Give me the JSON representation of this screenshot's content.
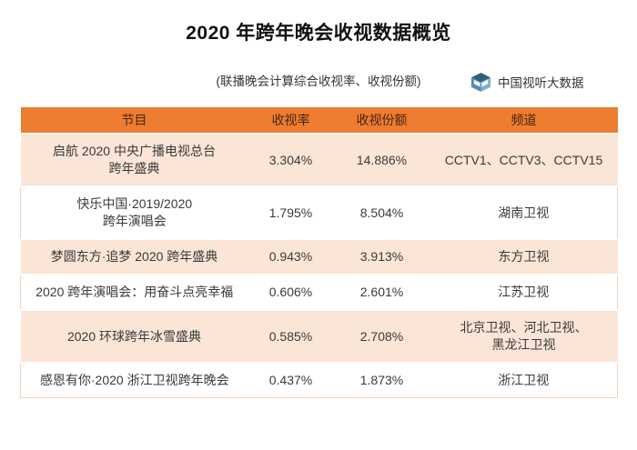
{
  "page": {
    "title": "2020 年跨年晚会收视数据概览",
    "subtitle": "(联播晚会计算综合收视率、收视份额)",
    "logo": {
      "icon": "cube-logo-icon",
      "text": "中国视听大数据"
    }
  },
  "chart_data": {
    "type": "table",
    "title": "2020 年跨年晚会收视数据概览",
    "subtitle": "(联播晚会计算综合收视率、收视份额)",
    "columns": [
      "节目",
      "收视率",
      "收视份额",
      "频道"
    ],
    "rows": [
      {
        "program": "启航 2020 中央广播电视总台\n跨年盛典",
        "rating": "3.304%",
        "share": "14.886%",
        "channel": "CCTV1、CCTV3、CCTV15"
      },
      {
        "program": "快乐中国·2019/2020\n跨年演唱会",
        "rating": "1.795%",
        "share": "8.504%",
        "channel": "湖南卫视"
      },
      {
        "program": "梦圆东方·追梦 2020 跨年盛典",
        "rating": "0.943%",
        "share": "3.913%",
        "channel": "东方卫视"
      },
      {
        "program": "2020 跨年演唱会：用奋斗点亮幸福",
        "rating": "0.606%",
        "share": "2.601%",
        "channel": "江苏卫视"
      },
      {
        "program": "2020 环球跨年冰雪盛典",
        "rating": "0.585%",
        "share": "2.708%",
        "channel": "北京卫视、河北卫视、\n黑龙江卫视"
      },
      {
        "program": "感恩有你·2020 浙江卫视跨年晚会",
        "rating": "0.437%",
        "share": "1.873%",
        "channel": "浙江卫视"
      }
    ]
  },
  "colors": {
    "header_bg": "#ED7D31",
    "header_text": "#4A2413",
    "row_alt_bg": "#FBE5D6",
    "row_bg": "#FFFFFF",
    "row_border": "#F2D2BD",
    "body_text": "#3A3A3A",
    "title_text": "#111111",
    "logo_top": "#335F7D",
    "logo_left": "#568EB0",
    "logo_right": "#7FB0CB"
  }
}
